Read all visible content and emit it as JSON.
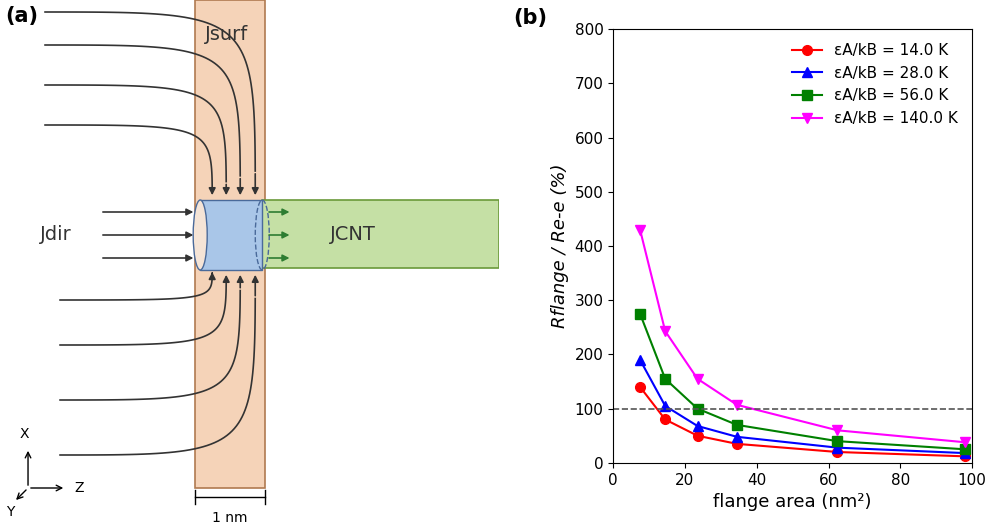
{
  "diagram": {
    "panel_label": "(a)",
    "labels": {
      "surface_current": "Jsurf",
      "direct_current": "Jdir",
      "cnt_current": "JCNT",
      "thickness": "1 nm"
    },
    "axes": {
      "x": "X",
      "y": "Y",
      "z": "Z"
    }
  },
  "chart_data": {
    "type": "line",
    "title": "(b)",
    "x_label": "flange area (nm²)",
    "y_label": "Rflange / Re-e (%)",
    "x": [
      7.5,
      14.5,
      23.5,
      34.5,
      62.5,
      98
    ],
    "xlim": [
      0,
      100
    ],
    "xticks": [
      0,
      20,
      40,
      60,
      80,
      100
    ],
    "ylim": [
      0,
      800
    ],
    "yticks": [
      0,
      100,
      200,
      300,
      400,
      500,
      600,
      700,
      800
    ],
    "reference_line": 100,
    "legend": "upper right",
    "series": [
      {
        "name": "εA/kB = 14.0 K",
        "color": "#ff0000",
        "marker": "o",
        "line_style": "solid",
        "values": [
          140,
          80,
          50,
          35,
          20,
          12
        ]
      },
      {
        "name": "εA/kB = 28.0 K",
        "color": "#0000ff",
        "marker": "^",
        "line_style": "solid",
        "values": [
          190,
          105,
          68,
          48,
          28,
          18
        ]
      },
      {
        "name": "εA/kB = 56.0 K",
        "color": "#008000",
        "marker": "s",
        "line_style": "solid",
        "values": [
          275,
          155,
          100,
          70,
          40,
          25
        ]
      },
      {
        "name": "εA/kB = 140.0 K",
        "color": "#ff00ff",
        "marker": "v",
        "line_style": "solid",
        "values": [
          430,
          243,
          155,
          107,
          60,
          38
        ]
      }
    ]
  }
}
